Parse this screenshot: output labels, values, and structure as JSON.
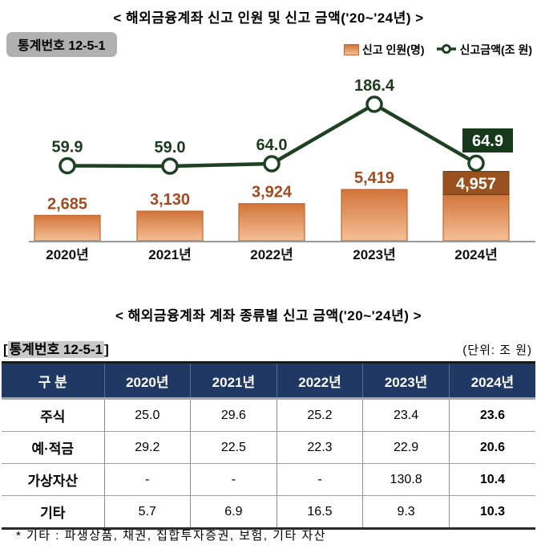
{
  "titles": {
    "chart_title": "< 해외금융계좌 신고 인원 및 신고 금액('20~'24년) >",
    "table_title": "< 해외금융계좌 계좌 종류별 신고 금액('20~'24년) >"
  },
  "stat_badge": "통계번호 12-5-1",
  "table_meta": {
    "stat_label_open": "[",
    "stat_label_text": "통계번호 12-5-1",
    "stat_label_close": "]",
    "unit": "(단위: 조 원)"
  },
  "legend": {
    "items": [
      {
        "label": "신고 인원(명)",
        "marker": "bar-swatch"
      },
      {
        "label": "신고금액(조 원)",
        "marker": "line-marker"
      }
    ]
  },
  "colors": {
    "bar_gradient_top": "#d1753a",
    "bar_gradient_bottom": "#f5bf97",
    "bar_border": "#c2662d",
    "bar_label": "#a34a1e",
    "bar_box_fill": "#99511f",
    "bar_box_border": "#7a3c12",
    "line": "#1e4122",
    "line_label": "#1d3c1f",
    "line_box_fill": "#16391b",
    "marker_fill": "#ffffff",
    "axis": "#999999",
    "year_label": "#111111",
    "table_header_bg": "#1f3864",
    "table_header_text": "#ffffff",
    "badge_bg": "#b0b0b0"
  },
  "chart_data": [
    {
      "type": "bar",
      "title": "< 해외금융계좌 신고 인원 및 신고 금액('20~'24년) >",
      "categories": [
        "2020년",
        "2021년",
        "2022년",
        "2023년",
        "2024년"
      ],
      "series": [
        {
          "name": "신고 인원(명)",
          "type": "bar",
          "values": [
            2685,
            3130,
            3924,
            5419,
            4957
          ],
          "labels": [
            "2,685",
            "3,130",
            "3,924",
            "5,419",
            "4,957"
          ]
        },
        {
          "name": "신고금액(조 원)",
          "type": "line",
          "values": [
            59.9,
            59.0,
            64.0,
            186.4,
            64.9
          ],
          "labels": [
            "59.9",
            "59.0",
            "64.0",
            "186.4",
            "64.9"
          ]
        }
      ],
      "legend_position": "top-right",
      "grid": false,
      "xlabel": "",
      "ylabel": "",
      "annotations": "2024 values shown in filled boxes (green=금액, brown=인원)"
    },
    {
      "type": "table",
      "title": "< 해외금융계좌 계좌 종류별 신고 금액('20~'24년) >",
      "unit": "(단위: 조 원)",
      "columns": [
        "구 분",
        "2020년",
        "2021년",
        "2022년",
        "2023년",
        "2024년"
      ],
      "rows": [
        {
          "label": "주식",
          "cells": [
            "25.0",
            "29.6",
            "25.2",
            "23.4",
            "23.6"
          ]
        },
        {
          "label": "예·적금",
          "cells": [
            "29.2",
            "22.5",
            "22.3",
            "22.9",
            "20.6"
          ]
        },
        {
          "label": "가상자산",
          "cells": [
            "-",
            "-",
            "-",
            "130.8",
            "10.4"
          ]
        },
        {
          "label": "기타",
          "cells": [
            "5.7",
            "6.9",
            "16.5",
            "9.3",
            "10.3"
          ]
        }
      ]
    }
  ],
  "footnote": "* 기타 : 파생상품, 채권, 집합투자증권, 보험, 기타 자산"
}
